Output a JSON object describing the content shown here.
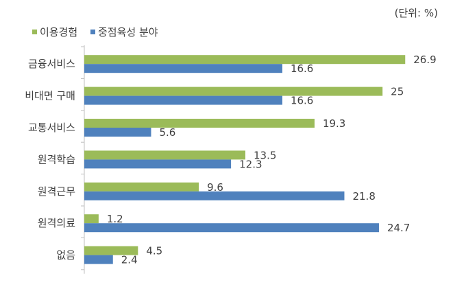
{
  "unit_label": "(단위: %)",
  "colors": {
    "series_green": "#9BBB59",
    "series_blue": "#4F81BD",
    "axis": "#BFBFBF",
    "text": "#404040"
  },
  "chart_data": {
    "type": "bar",
    "orientation": "horizontal",
    "categories": [
      "금융서비스",
      "비대면 구매",
      "교통서비스",
      "원격학습",
      "원격근무",
      "원격의료",
      "없음"
    ],
    "series": [
      {
        "name": "이용경험",
        "color": "#9BBB59",
        "values": [
          26.9,
          25,
          19.3,
          13.5,
          9.6,
          1.2,
          4.5
        ]
      },
      {
        "name": "중점육성 분야",
        "color": "#4F81BD",
        "values": [
          16.6,
          16.6,
          5.6,
          12.3,
          21.8,
          24.7,
          2.4
        ]
      }
    ],
    "value_labels": [
      [
        "26.9",
        "25",
        "19.3",
        "13.5",
        "9.6",
        "1.2",
        "4.5"
      ],
      [
        "16.6",
        "16.6",
        "5.6",
        "12.3",
        "21.8",
        "24.7",
        "2.4"
      ]
    ],
    "xlim": [
      0,
      27
    ],
    "grid": false,
    "legend": "top-left"
  }
}
